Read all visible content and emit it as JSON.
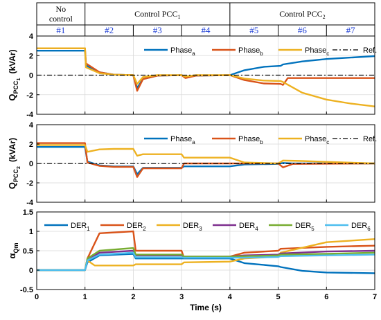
{
  "header": {
    "groups": [
      {
        "label": "No control",
        "from": 0,
        "to": 1
      },
      {
        "label": "Control PCC",
        "sub": "1",
        "from": 1,
        "to": 4
      },
      {
        "label": "Control PCC",
        "sub": "2",
        "from": 4,
        "to": 7
      }
    ],
    "segments": [
      "#1",
      "#2",
      "#3",
      "#4",
      "#5",
      "#6",
      "#7"
    ]
  },
  "colors": {
    "a": "#0072bd",
    "b": "#d95319",
    "c": "#edb120",
    "d": "#7e2f8e",
    "e": "#77ac30",
    "f": "#4dbeee",
    "ref": "#000000",
    "segment_text": "#1f3fd6"
  },
  "chart_data": [
    {
      "type": "line",
      "ylabel": {
        "main": "Q",
        "sub": "PCC",
        "subsub": "1",
        "unit": "(kVAr)"
      },
      "xlim": [
        0,
        7
      ],
      "ylim": [
        -4,
        4
      ],
      "yticks": [
        -4,
        -2,
        0,
        2,
        4
      ],
      "grid": true,
      "legend": "top-right",
      "series": [
        {
          "name": "Phase",
          "sub": "a",
          "color": "a",
          "points": [
            [
              0,
              2.5
            ],
            [
              1.0,
              2.5
            ],
            [
              1.02,
              1.0
            ],
            [
              1.3,
              0.3
            ],
            [
              1.6,
              0.05
            ],
            [
              2.0,
              0.0
            ],
            [
              2.08,
              -1.3
            ],
            [
              2.2,
              -0.4
            ],
            [
              2.5,
              -0.05
            ],
            [
              3.0,
              0.0
            ],
            [
              3.08,
              -0.2
            ],
            [
              3.3,
              -0.05
            ],
            [
              4.0,
              0.0
            ],
            [
              4.3,
              0.5
            ],
            [
              4.7,
              0.85
            ],
            [
              5.05,
              0.95
            ],
            [
              5.1,
              1.1
            ],
            [
              5.5,
              1.4
            ],
            [
              6.0,
              1.65
            ],
            [
              6.5,
              1.8
            ],
            [
              7.0,
              1.95
            ]
          ]
        },
        {
          "name": "Phase",
          "sub": "b",
          "color": "b",
          "points": [
            [
              0,
              2.75
            ],
            [
              1.0,
              2.75
            ],
            [
              1.02,
              1.2
            ],
            [
              1.3,
              0.3
            ],
            [
              1.6,
              0.05
            ],
            [
              2.0,
              0.0
            ],
            [
              2.08,
              -1.6
            ],
            [
              2.2,
              -0.4
            ],
            [
              2.5,
              -0.05
            ],
            [
              3.0,
              0.0
            ],
            [
              3.08,
              -0.3
            ],
            [
              3.3,
              -0.05
            ],
            [
              4.0,
              0.0
            ],
            [
              4.3,
              -0.5
            ],
            [
              4.7,
              -0.85
            ],
            [
              5.05,
              -0.9
            ],
            [
              5.1,
              -1.0
            ],
            [
              5.2,
              -0.3
            ],
            [
              6.0,
              -0.3
            ],
            [
              7.0,
              -0.3
            ]
          ]
        },
        {
          "name": "Phase",
          "sub": "c",
          "color": "c",
          "points": [
            [
              0,
              2.75
            ],
            [
              1.0,
              2.75
            ],
            [
              1.02,
              0.8
            ],
            [
              1.3,
              0.2
            ],
            [
              1.6,
              0.05
            ],
            [
              2.0,
              0.0
            ],
            [
              2.08,
              -0.9
            ],
            [
              2.2,
              -0.2
            ],
            [
              2.5,
              0.0
            ],
            [
              3.0,
              0.0
            ],
            [
              3.08,
              -0.15
            ],
            [
              3.3,
              0.0
            ],
            [
              4.0,
              0.0
            ],
            [
              4.3,
              -0.35
            ],
            [
              4.7,
              -0.55
            ],
            [
              5.05,
              -0.6
            ],
            [
              5.1,
              -0.7
            ],
            [
              5.5,
              -1.8
            ],
            [
              6.0,
              -2.5
            ],
            [
              6.5,
              -2.9
            ],
            [
              7.0,
              -3.2
            ]
          ]
        },
        {
          "name": "Ref.",
          "color": "ref",
          "dash": true,
          "points": [
            [
              0,
              0
            ],
            [
              7,
              0
            ]
          ]
        }
      ]
    },
    {
      "type": "line",
      "ylabel": {
        "main": "Q",
        "sub": "PCC",
        "subsub": "2",
        "unit": "(kVAr)"
      },
      "xlim": [
        0,
        7
      ],
      "ylim": [
        -4,
        4
      ],
      "yticks": [
        -4,
        -2,
        0,
        2,
        4
      ],
      "grid": true,
      "legend": "top-right",
      "series": [
        {
          "name": "Phase",
          "sub": "a",
          "color": "a",
          "points": [
            [
              0,
              1.7
            ],
            [
              1.0,
              1.7
            ],
            [
              1.05,
              0.2
            ],
            [
              1.3,
              -0.2
            ],
            [
              1.6,
              -0.3
            ],
            [
              2.0,
              -0.3
            ],
            [
              2.08,
              -1.1
            ],
            [
              2.2,
              -0.45
            ],
            [
              3.0,
              -0.45
            ],
            [
              3.05,
              -0.3
            ],
            [
              4.0,
              -0.3
            ],
            [
              4.3,
              -0.1
            ],
            [
              5.0,
              -0.05
            ],
            [
              5.1,
              0.05
            ],
            [
              5.3,
              0.0
            ],
            [
              7.0,
              0.0
            ]
          ]
        },
        {
          "name": "Phase",
          "sub": "b",
          "color": "b",
          "points": [
            [
              0,
              2.1
            ],
            [
              1.0,
              2.1
            ],
            [
              1.05,
              0.1
            ],
            [
              1.3,
              -0.25
            ],
            [
              1.6,
              -0.35
            ],
            [
              2.0,
              -0.35
            ],
            [
              2.08,
              -1.4
            ],
            [
              2.2,
              -0.5
            ],
            [
              3.0,
              -0.5
            ],
            [
              3.05,
              0.0
            ],
            [
              4.0,
              0.0
            ],
            [
              4.3,
              0.0
            ],
            [
              5.0,
              0.0
            ],
            [
              5.1,
              -0.4
            ],
            [
              5.3,
              -0.05
            ],
            [
              7.0,
              0.0
            ]
          ]
        },
        {
          "name": "Phase",
          "sub": "c",
          "color": "c",
          "points": [
            [
              0,
              1.9
            ],
            [
              1.0,
              1.9
            ],
            [
              1.05,
              1.2
            ],
            [
              1.3,
              1.45
            ],
            [
              1.6,
              1.5
            ],
            [
              2.0,
              1.5
            ],
            [
              2.08,
              0.8
            ],
            [
              2.2,
              0.95
            ],
            [
              3.0,
              0.95
            ],
            [
              3.05,
              0.6
            ],
            [
              4.0,
              0.6
            ],
            [
              4.3,
              0.1
            ],
            [
              5.0,
              0.0
            ],
            [
              5.1,
              0.3
            ],
            [
              5.5,
              0.25
            ],
            [
              7.0,
              0.0
            ]
          ]
        },
        {
          "name": "Ref.",
          "color": "ref",
          "dash": true,
          "points": [
            [
              0,
              0
            ],
            [
              7,
              0
            ]
          ]
        }
      ]
    },
    {
      "type": "line",
      "ylabel": {
        "main": "α",
        "sub": "Qm"
      },
      "xlabel": "Time (s)",
      "xlim": [
        0,
        7
      ],
      "ylim": [
        -0.5,
        1.5
      ],
      "yticks": [
        -0.5,
        0,
        0.5,
        1,
        1.5
      ],
      "xticks": [
        0,
        1,
        2,
        3,
        4,
        5,
        6,
        7
      ],
      "grid": true,
      "legend": "top",
      "series": [
        {
          "name": "DER",
          "sub": "1",
          "color": "a",
          "points": [
            [
              0,
              0
            ],
            [
              1.0,
              0
            ],
            [
              1.05,
              0.2
            ],
            [
              1.3,
              0.38
            ],
            [
              2.0,
              0.42
            ],
            [
              2.05,
              0.3
            ],
            [
              3.0,
              0.3
            ],
            [
              3.05,
              0.3
            ],
            [
              4.0,
              0.3
            ],
            [
              4.3,
              0.18
            ],
            [
              5.0,
              0.1
            ],
            [
              5.05,
              0.08
            ],
            [
              5.5,
              -0.02
            ],
            [
              6.0,
              -0.06
            ],
            [
              7.0,
              -0.08
            ]
          ]
        },
        {
          "name": "DER",
          "sub": "2",
          "color": "b",
          "points": [
            [
              0,
              0
            ],
            [
              1.0,
              0
            ],
            [
              1.05,
              0.3
            ],
            [
              1.3,
              0.95
            ],
            [
              2.0,
              1.0
            ],
            [
              2.05,
              0.5
            ],
            [
              3.0,
              0.5
            ],
            [
              3.05,
              0.32
            ],
            [
              4.0,
              0.35
            ],
            [
              4.3,
              0.45
            ],
            [
              5.0,
              0.5
            ],
            [
              5.05,
              0.55
            ],
            [
              6.0,
              0.6
            ],
            [
              7.0,
              0.63
            ]
          ]
        },
        {
          "name": "DER",
          "sub": "3",
          "color": "c",
          "points": [
            [
              0,
              0
            ],
            [
              1.0,
              0
            ],
            [
              1.05,
              0.25
            ],
            [
              1.2,
              0.12
            ],
            [
              2.0,
              0.12
            ],
            [
              2.05,
              0.15
            ],
            [
              3.0,
              0.15
            ],
            [
              3.05,
              0.2
            ],
            [
              4.0,
              0.22
            ],
            [
              4.3,
              0.3
            ],
            [
              5.0,
              0.35
            ],
            [
              5.05,
              0.45
            ],
            [
              6.0,
              0.72
            ],
            [
              7.0,
              0.8
            ]
          ]
        },
        {
          "name": "DER",
          "sub": "4",
          "color": "d",
          "points": [
            [
              0,
              0
            ],
            [
              1.0,
              0
            ],
            [
              1.05,
              0.25
            ],
            [
              1.3,
              0.45
            ],
            [
              2.0,
              0.5
            ],
            [
              2.05,
              0.38
            ],
            [
              3.0,
              0.38
            ],
            [
              3.05,
              0.35
            ],
            [
              4.0,
              0.35
            ],
            [
              4.3,
              0.38
            ],
            [
              5.0,
              0.4
            ],
            [
              5.05,
              0.43
            ],
            [
              6.0,
              0.48
            ],
            [
              7.0,
              0.5
            ]
          ]
        },
        {
          "name": "DER",
          "sub": "5",
          "color": "e",
          "points": [
            [
              0,
              0
            ],
            [
              1.0,
              0
            ],
            [
              1.05,
              0.3
            ],
            [
              1.3,
              0.5
            ],
            [
              2.0,
              0.57
            ],
            [
              2.05,
              0.4
            ],
            [
              3.0,
              0.4
            ],
            [
              3.05,
              0.35
            ],
            [
              4.0,
              0.35
            ],
            [
              4.3,
              0.36
            ],
            [
              5.0,
              0.38
            ],
            [
              5.05,
              0.4
            ],
            [
              6.0,
              0.42
            ],
            [
              7.0,
              0.45
            ]
          ]
        },
        {
          "name": "DER",
          "sub": "6",
          "color": "f",
          "points": [
            [
              0,
              0
            ],
            [
              1.0,
              0
            ],
            [
              1.05,
              0.25
            ],
            [
              1.3,
              0.4
            ],
            [
              2.0,
              0.45
            ],
            [
              2.05,
              0.33
            ],
            [
              3.0,
              0.33
            ],
            [
              3.05,
              0.32
            ],
            [
              4.0,
              0.32
            ],
            [
              4.3,
              0.32
            ],
            [
              5.0,
              0.34
            ],
            [
              5.05,
              0.36
            ],
            [
              6.0,
              0.38
            ],
            [
              7.0,
              0.4
            ]
          ]
        }
      ]
    }
  ]
}
